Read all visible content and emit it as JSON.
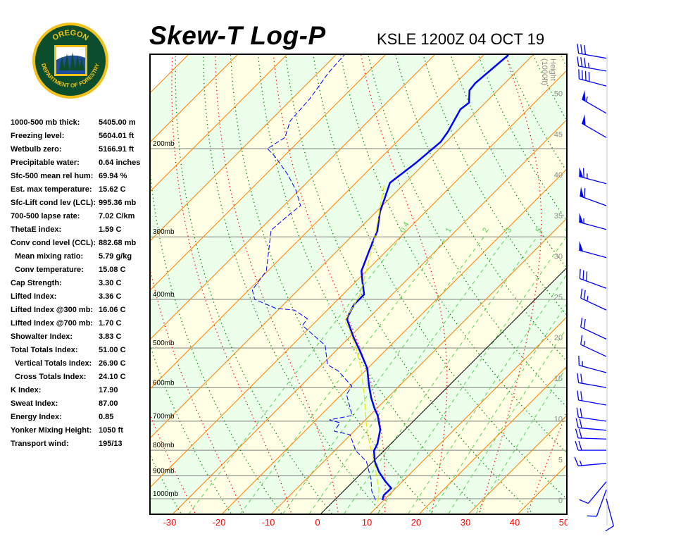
{
  "header": {
    "title": "Skew-T Log-P",
    "station": "KSLE 1200Z 04 OCT 19"
  },
  "logo": {
    "text_top": "OREGON",
    "text_bottom": "DEPARTMENT OF FORESTRY",
    "colors": {
      "green": "#0b4d2c",
      "gold": "#f2c21b"
    }
  },
  "stats": [
    {
      "label": "1000-500 mb thick:",
      "value": "5405.00 m",
      "indent": false
    },
    {
      "label": "Freezing level:",
      "value": "5604.01 ft",
      "indent": false
    },
    {
      "label": "Wetbulb zero:",
      "value": "5166.91 ft",
      "indent": false
    },
    {
      "label": "Precipitable water:",
      "value": "0.64 inches",
      "indent": false
    },
    {
      "label": "Sfc-500 mean rel hum:",
      "value": "69.94 %",
      "indent": false
    },
    {
      "label": "Est. max temperature:",
      "value": "15.62 C",
      "indent": false
    },
    {
      "label": "Sfc-Lift cond lev (LCL):",
      "value": "995.36 mb",
      "indent": false
    },
    {
      "label": "700-500 lapse rate:",
      "value": "7.02 C/km",
      "indent": false
    },
    {
      "label": "ThetaE index:",
      "value": "1.59 C",
      "indent": false
    },
    {
      "label": "Conv cond level (CCL):",
      "value": "882.68 mb",
      "indent": false
    },
    {
      "label": "Mean mixing ratio:",
      "value": "5.79 g/kg",
      "indent": true
    },
    {
      "label": "Conv temperature:",
      "value": "15.08 C",
      "indent": true
    },
    {
      "label": "Cap Strength:",
      "value": "3.30 C",
      "indent": false
    },
    {
      "label": "Lifted Index:",
      "value": "3.36 C",
      "indent": false
    },
    {
      "label": "Lifted Index @300 mb:",
      "value": "16.06 C",
      "indent": false
    },
    {
      "label": "Lifted Index @700 mb:",
      "value": "1.70 C",
      "indent": false
    },
    {
      "label": "Showalter Index:",
      "value": "3.83 C",
      "indent": false
    },
    {
      "label": "Total Totals Index:",
      "value": "51.00 C",
      "indent": false
    },
    {
      "label": "Vertical Totals Index:",
      "value": "26.90 C",
      "indent": true
    },
    {
      "label": "Cross Totals Index:",
      "value": "24.10 C",
      "indent": true
    },
    {
      "label": "K Index:",
      "value": "17.90",
      "indent": false
    },
    {
      "label": "Sweat Index:",
      "value": "87.00",
      "indent": false
    },
    {
      "label": "Energy Index:",
      "value": "0.85",
      "indent": false
    },
    {
      "label": "Yonker Mixing Height:",
      "value": "1050 ft",
      "indent": false
    },
    {
      "label": "Transport wind:",
      "value": "195/13",
      "indent": false
    }
  ],
  "chart_data": {
    "type": "line",
    "title": "",
    "xlabel": "",
    "ylabel": "",
    "x_scale": "skewed temperature (C)",
    "y_scale": "log pressure (mb)",
    "xlim": [
      -30,
      50
    ],
    "ylim": [
      1074,
      130
    ],
    "grid": true,
    "x_ticks": [
      -30,
      -20,
      -10,
      0,
      10,
      20,
      30,
      40,
      50
    ],
    "pressure_levels": [
      {
        "p": 1000,
        "label": "1000mb"
      },
      {
        "p": 900,
        "label": "900mb"
      },
      {
        "p": 800,
        "label": "800mb"
      },
      {
        "p": 700,
        "label": "700mb"
      },
      {
        "p": 600,
        "label": "600mb"
      },
      {
        "p": 500,
        "label": "500mb"
      },
      {
        "p": 400,
        "label": "400mb"
      },
      {
        "p": 300,
        "label": "300mb"
      },
      {
        "p": 200,
        "label": "200mb"
      }
    ],
    "height_axis": {
      "label_line1": "Height",
      "label_line2": "(1000ft)",
      "ticks": [
        0,
        5,
        10,
        15,
        20,
        25,
        30,
        35,
        40,
        45,
        50
      ]
    },
    "mixing_ratio_labels": [
      0.4,
      1,
      2,
      3,
      5,
      8
    ],
    "colors": {
      "temperature": "#0000ff",
      "dewpoint": "#0000ff",
      "wetbulb": "#e6e600",
      "isotherm": "#ff8000",
      "zero_isotherm": "#000000",
      "dry_adiabat": "#008000",
      "moist_adiabat": "#ff0000",
      "mixing_ratio": "#55d455",
      "band_a": "#ffffe6",
      "band_b": "#ebffeb",
      "tick_label": "#ff0000",
      "height_label": "#8c8c8c"
    },
    "series": [
      {
        "key": "temperature",
        "points": [
          [
            1006,
            9.7
          ],
          [
            984,
            9.0
          ],
          [
            953,
            9.1
          ],
          [
            922,
            6.4
          ],
          [
            884,
            3.3
          ],
          [
            842,
            0.3
          ],
          [
            802,
            -2.0
          ],
          [
            777,
            -2.7
          ],
          [
            728,
            -5.0
          ],
          [
            682,
            -8.4
          ],
          [
            661,
            -10.4
          ],
          [
            629,
            -13.3
          ],
          [
            590,
            -16.6
          ],
          [
            549,
            -20.1
          ],
          [
            510,
            -24.7
          ],
          [
            475,
            -29.3
          ],
          [
            437,
            -34.3
          ],
          [
            410,
            -35.7
          ],
          [
            391,
            -35.7
          ],
          [
            369,
            -38.6
          ],
          [
            351,
            -41.0
          ],
          [
            319,
            -43.6
          ],
          [
            292,
            -45.9
          ],
          [
            267,
            -49.3
          ],
          [
            255,
            -50.6
          ],
          [
            234,
            -53.1
          ],
          [
            214,
            -51.9
          ],
          [
            194,
            -51.1
          ],
          [
            185,
            -51.7
          ],
          [
            167,
            -53.7
          ],
          [
            162,
            -53.3
          ],
          [
            153,
            -55.7
          ],
          [
            148,
            -56.0
          ],
          [
            130,
            -55.0
          ]
        ]
      },
      {
        "key": "dewpoint",
        "points": [
          [
            1006,
            8.3
          ],
          [
            965,
            5.7
          ],
          [
            913,
            3.1
          ],
          [
            842,
            -1.4
          ],
          [
            802,
            -5.7
          ],
          [
            745,
            -10.1
          ],
          [
            733,
            -14.0
          ],
          [
            705,
            -14.6
          ],
          [
            696,
            -17.3
          ],
          [
            682,
            -13.6
          ],
          [
            619,
            -19.0
          ],
          [
            596,
            -19.6
          ],
          [
            556,
            -25.4
          ],
          [
            540,
            -28.9
          ],
          [
            494,
            -33.3
          ],
          [
            451,
            -41.9
          ],
          [
            437,
            -42.3
          ],
          [
            420,
            -46.7
          ],
          [
            417,
            -50.7
          ],
          [
            400,
            -56.9
          ],
          [
            383,
            -59.3
          ],
          [
            351,
            -60.3
          ],
          [
            304,
            -65.9
          ],
          [
            291,
            -67.6
          ],
          [
            271,
            -67.1
          ],
          [
            260,
            -66.6
          ],
          [
            242,
            -70.7
          ],
          [
            225,
            -75.6
          ],
          [
            207,
            -81.9
          ],
          [
            200,
            -84.9
          ],
          [
            190,
            -83.6
          ],
          [
            176,
            -85.9
          ],
          [
            159,
            -86.4
          ],
          [
            141,
            -87.9
          ],
          [
            130,
            -88.3
          ]
        ]
      },
      {
        "key": "wetbulb",
        "points": [
          [
            1013,
            9.1
          ],
          [
            959,
            6.9
          ],
          [
            856,
            1.0
          ],
          [
            740,
            -6.9
          ],
          [
            700,
            -9.6
          ],
          [
            619,
            -15.4
          ],
          [
            553,
            -21.0
          ],
          [
            507,
            -25.7
          ],
          [
            463,
            -31.1
          ],
          [
            441,
            -34.3
          ],
          [
            393,
            -36.4
          ],
          [
            351,
            -40.0
          ],
          [
            299,
            -45.3
          ],
          [
            236,
            -53.9
          ]
        ]
      }
    ],
    "wind_barbs": [
      {
        "p": 1000,
        "dir": 165,
        "speed": 10
      },
      {
        "p": 960,
        "dir": 200,
        "speed": 10
      },
      {
        "p": 925,
        "dir": 220,
        "speed": 10
      },
      {
        "p": 850,
        "dir": 265,
        "speed": 15
      },
      {
        "p": 800,
        "dir": 270,
        "speed": 20
      },
      {
        "p": 760,
        "dir": 272,
        "speed": 20
      },
      {
        "p": 730,
        "dir": 275,
        "speed": 20
      },
      {
        "p": 700,
        "dir": 278,
        "speed": 20
      },
      {
        "p": 650,
        "dir": 280,
        "speed": 20
      },
      {
        "p": 600,
        "dir": 280,
        "speed": 20
      },
      {
        "p": 560,
        "dir": 285,
        "speed": 15
      },
      {
        "p": 520,
        "dir": 295,
        "speed": 15
      },
      {
        "p": 480,
        "dir": 295,
        "speed": 20
      },
      {
        "p": 420,
        "dir": 295,
        "speed": 25
      },
      {
        "p": 380,
        "dir": 290,
        "speed": 30
      },
      {
        "p": 330,
        "dir": 285,
        "speed": 50
      },
      {
        "p": 290,
        "dir": 285,
        "speed": 55
      },
      {
        "p": 260,
        "dir": 290,
        "speed": 60
      },
      {
        "p": 235,
        "dir": 285,
        "speed": 65
      },
      {
        "p": 190,
        "dir": 300,
        "speed": 50
      },
      {
        "p": 170,
        "dir": 300,
        "speed": 55
      },
      {
        "p": 150,
        "dir": 285,
        "speed": 40
      },
      {
        "p": 140,
        "dir": 280,
        "speed": 35
      },
      {
        "p": 132,
        "dir": 280,
        "speed": 30
      }
    ]
  }
}
